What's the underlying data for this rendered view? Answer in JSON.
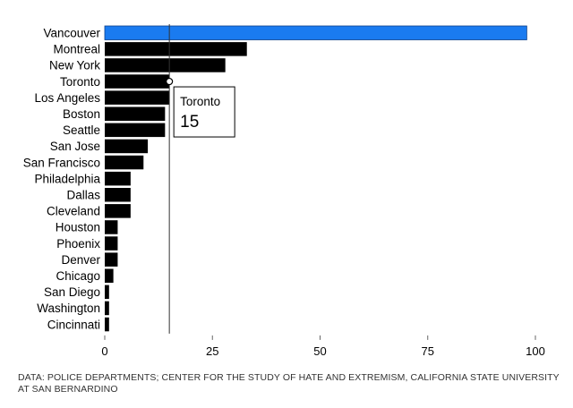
{
  "chart_data": {
    "type": "bar",
    "orientation": "horizontal",
    "categories": [
      "Vancouver",
      "Montreal",
      "New York",
      "Toronto",
      "Los Angeles",
      "Boston",
      "Seattle",
      "San Jose",
      "San Francisco",
      "Philadelphia",
      "Dallas",
      "Cleveland",
      "Houston",
      "Phoenix",
      "Denver",
      "Chicago",
      "San Diego",
      "Washington",
      "Cincinnati"
    ],
    "values": [
      98,
      33,
      28,
      15,
      15,
      14,
      14,
      10,
      9,
      6,
      6,
      6,
      3,
      3,
      3,
      2,
      1,
      1,
      1
    ],
    "xlim": [
      0,
      100
    ],
    "xticks": [
      "0",
      "25",
      "50",
      "75",
      "100"
    ],
    "highlight": {
      "category": "Vancouver",
      "color": "#1a7bf0"
    },
    "bar_color": "#000000",
    "reference": {
      "category": "Toronto",
      "label": "Toronto",
      "value": "15"
    },
    "grid": false,
    "source": "DATA: POLICE DEPARTMENTS; CENTER FOR THE STUDY OF HATE AND EXTREMISM, CALIFORNIA STATE UNIVERSITY AT SAN BERNARDINO"
  }
}
